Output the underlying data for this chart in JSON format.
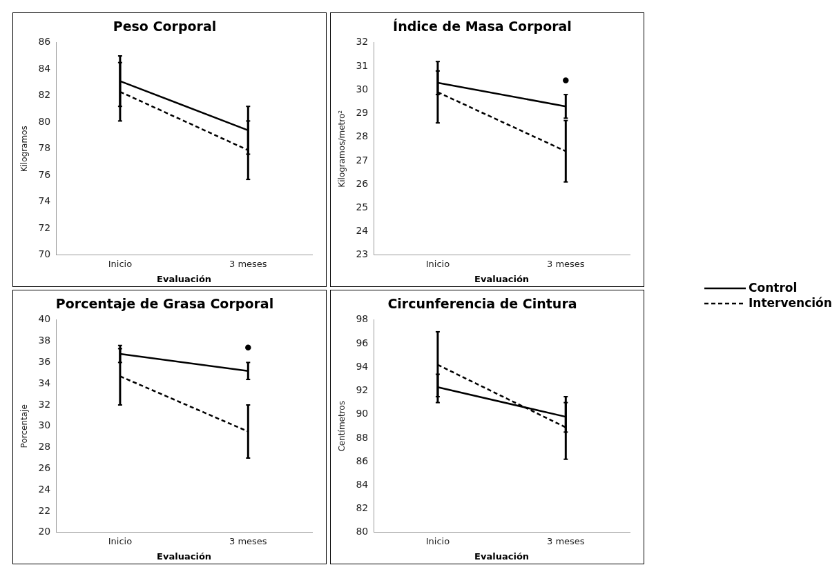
{
  "chart_data": [
    {
      "type": "line",
      "title": "Peso Corporal",
      "xlabel": "Evaluación",
      "ylabel": "Kilogramos",
      "categories": [
        "Inicio",
        "3 meses"
      ],
      "ylim": [
        70,
        86
      ],
      "yticks": [
        70,
        72,
        74,
        76,
        78,
        80,
        82,
        84,
        86
      ],
      "grid": false,
      "legend": "right",
      "marker": "none",
      "series": [
        {
          "name": "Control",
          "color": "#000000",
          "line_style": "solid",
          "values": [
            83.1,
            79.4
          ],
          "errors": [
            1.9,
            1.8
          ]
        },
        {
          "name": "Intervención",
          "color": "#000000",
          "line_style": "dashed",
          "values": [
            82.3,
            77.9
          ],
          "errors": [
            2.2,
            2.2
          ]
        }
      ]
    },
    {
      "type": "line",
      "title": "Índice de Masa Corporal",
      "xlabel": "Evaluación",
      "ylabel": "Kilogramos/metro²",
      "categories": [
        "Inicio",
        "3 meses"
      ],
      "ylim": [
        23,
        32
      ],
      "yticks": [
        23,
        24,
        25,
        26,
        27,
        28,
        29,
        30,
        31,
        32
      ],
      "grid": false,
      "marker": "none",
      "series": [
        {
          "color": "#000000",
          "line_style": "solid",
          "values": [
            30.3,
            29.3
          ],
          "errors": [
            0.5,
            0.5
          ]
        },
        {
          "color": "#000000",
          "line_style": "dashed",
          "values": [
            29.9,
            27.4
          ],
          "errors": [
            1.3,
            1.3
          ]
        },
        {
          "type": "scatter",
          "marker": "circle",
          "color": "#000000",
          "x": [
            "3 meses"
          ],
          "values": [
            30.4
          ]
        }
      ]
    },
    {
      "type": "line",
      "title": "Porcentaje de Grasa Corporal",
      "xlabel": "Evaluación",
      "ylabel": "Porcentaje",
      "categories": [
        "Inicio",
        "3 meses"
      ],
      "ylim": [
        20,
        40
      ],
      "yticks": [
        20,
        22,
        24,
        26,
        28,
        30,
        32,
        34,
        36,
        38,
        40
      ],
      "grid": false,
      "marker": "none",
      "series": [
        {
          "color": "#000000",
          "line_style": "solid",
          "values": [
            36.8,
            35.2
          ],
          "errors": [
            0.8,
            0.8
          ]
        },
        {
          "color": "#000000",
          "line_style": "dashed",
          "values": [
            34.7,
            29.5
          ],
          "errors": [
            [
              32.0,
              37.3
            ],
            [
              27.0,
              32.0
            ]
          ]
        },
        {
          "type": "scatter",
          "marker": "circle",
          "color": "#000000",
          "x": [
            "3 meses"
          ],
          "values": [
            37.4
          ]
        }
      ]
    },
    {
      "type": "line",
      "title": "Circunferencia de Cintura",
      "xlabel": "Evaluación",
      "ylabel": "Centímetros",
      "categories": [
        "Inicio",
        "3 meses"
      ],
      "ylim": [
        80,
        98
      ],
      "yticks": [
        80,
        82,
        84,
        86,
        88,
        90,
        92,
        94,
        96,
        98
      ],
      "grid": false,
      "marker": "none",
      "series": [
        {
          "color": "#000000",
          "line_style": "solid",
          "values": [
            92.3,
            89.8
          ],
          "errors": [
            [
              91.0,
              93.4
            ],
            [
              88.5,
              91.0
            ]
          ]
        },
        {
          "color": "#000000",
          "line_style": "dashed",
          "values": [
            94.2,
            88.9
          ],
          "errors": [
            [
              91.5,
              97.0
            ],
            [
              86.2,
              91.5
            ]
          ]
        }
      ]
    }
  ]
}
